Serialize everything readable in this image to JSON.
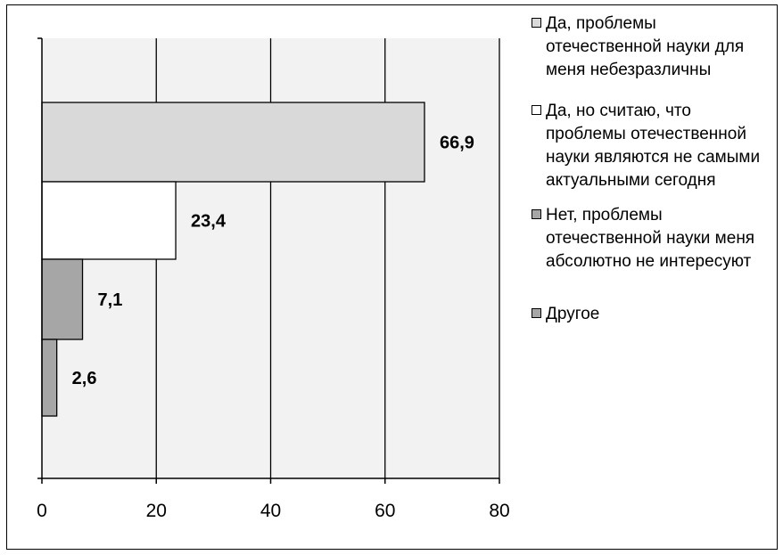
{
  "chart_data": {
    "type": "bar",
    "orientation": "horizontal",
    "categories": [
      "Да, проблемы отечественной науки для меня небезразличны",
      "Да, но считаю, что проблемы отечественной науки являются не самыми актуальными сегодня",
      "Нет, проблемы отечественной науки меня абсолютно не интересуют",
      "Другое"
    ],
    "values": [
      66.9,
      23.4,
      7.1,
      2.6
    ],
    "value_labels": [
      "66,9",
      "23,4",
      "7,1",
      "2,6"
    ],
    "colors": [
      "#d9d9d9",
      "#ffffff",
      "#a6a6a6",
      "#a6a6a6"
    ],
    "xlim": [
      0,
      80
    ],
    "xticks": [
      "0",
      "20",
      "40",
      "60",
      "80"
    ],
    "grid": true,
    "plot_background": "#f2f2f2",
    "legend_position": "right"
  }
}
